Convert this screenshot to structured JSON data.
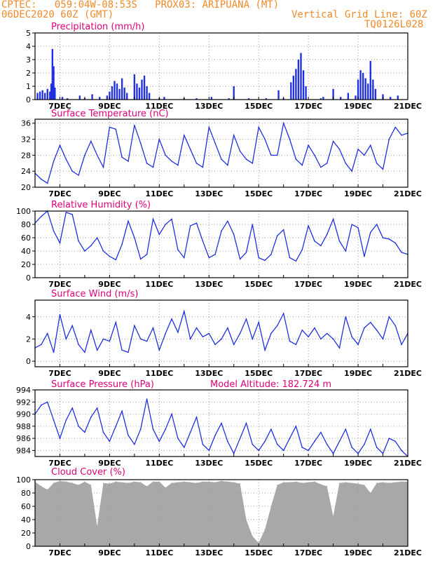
{
  "header": {
    "line1": "CPTEC:   059:04W-08:53S   PROX03: ARIPUANA (MT)",
    "line2_left": "06DEC2020 60Z (GMT)",
    "line2_right": "Vertical Grid Line: 60Z",
    "line3_right": "TQ0126L028"
  },
  "colors": {
    "series": "#2030e0",
    "title": "#e0007a",
    "header": "#f08a28",
    "cloud": "#a8a8a8",
    "grid": "#9a9a9a"
  },
  "x_axis": {
    "start_day": 6,
    "end_day": 21,
    "labels": [
      "7DEC",
      "9DEC",
      "11DEC",
      "13DEC",
      "15DEC",
      "17DEC",
      "19DEC",
      "21DEC"
    ],
    "label_days": [
      7,
      9,
      11,
      13,
      15,
      17,
      19,
      21
    ]
  },
  "chart_data": [
    {
      "type": "bar",
      "title": "Precipitation (mm/h)",
      "ylim": [
        0,
        5
      ],
      "yticks": [
        0,
        1,
        2,
        3,
        4,
        5
      ],
      "x": [
        6.1,
        6.2,
        6.3,
        6.4,
        6.5,
        6.6,
        6.65,
        6.7,
        6.75,
        6.8,
        7.1,
        7.3,
        7.8,
        8.0,
        8.3,
        8.6,
        8.9,
        9.0,
        9.1,
        9.2,
        9.3,
        9.4,
        9.5,
        9.6,
        9.7,
        10.0,
        10.1,
        10.2,
        10.3,
        10.4,
        10.5,
        10.6,
        11.0,
        11.2,
        12.0,
        12.5,
        13.1,
        13.8,
        14.0,
        14.6,
        15.3,
        15.8,
        16.0,
        16.3,
        16.4,
        16.5,
        16.6,
        16.7,
        16.8,
        16.9,
        17.5,
        17.6,
        18.0,
        18.3,
        18.6,
        18.9,
        19.0,
        19.1,
        19.2,
        19.3,
        19.4,
        19.5,
        19.6,
        19.7,
        20.0,
        20.3,
        20.6
      ],
      "values": [
        0.5,
        0.6,
        0.7,
        0.5,
        0.8,
        0.6,
        1.2,
        3.8,
        2.5,
        0.9,
        0.2,
        0.1,
        0.3,
        0.1,
        0.4,
        0.2,
        0.3,
        0.6,
        1.0,
        1.4,
        1.2,
        0.8,
        1.6,
        0.9,
        0.5,
        1.9,
        1.2,
        0.9,
        1.5,
        1.8,
        1.0,
        0.5,
        0.1,
        0.2,
        0.1,
        0.1,
        0.2,
        0.1,
        1.0,
        0.1,
        0.1,
        0.7,
        0.1,
        1.3,
        1.8,
        2.3,
        3.0,
        3.5,
        2.2,
        1.0,
        0.1,
        0.2,
        0.8,
        0.2,
        0.5,
        0.3,
        1.5,
        2.2,
        2.0,
        1.6,
        1.2,
        2.9,
        1.5,
        0.8,
        0.4,
        0.2,
        0.3
      ]
    },
    {
      "type": "line",
      "title": "Surface Temperature (nC)",
      "ylim": [
        20,
        37
      ],
      "yticks": [
        20,
        24,
        28,
        32,
        36
      ],
      "x": [
        6.0,
        6.25,
        6.5,
        6.75,
        7.0,
        7.25,
        7.5,
        7.75,
        8.0,
        8.25,
        8.5,
        8.75,
        9.0,
        9.25,
        9.5,
        9.75,
        10.0,
        10.25,
        10.5,
        10.75,
        11.0,
        11.25,
        11.5,
        11.75,
        12.0,
        12.25,
        12.5,
        12.75,
        13.0,
        13.25,
        13.5,
        13.75,
        14.0,
        14.25,
        14.5,
        14.75,
        15.0,
        15.25,
        15.5,
        15.75,
        16.0,
        16.25,
        16.5,
        16.75,
        17.0,
        17.25,
        17.5,
        17.75,
        18.0,
        18.25,
        18.5,
        18.75,
        19.0,
        19.25,
        19.5,
        19.75,
        20.0,
        20.25,
        20.5,
        20.75,
        21.0
      ],
      "values": [
        23.5,
        22.0,
        21.0,
        26.5,
        30.5,
        27.0,
        24.0,
        23.0,
        28.0,
        31.5,
        28.0,
        25.0,
        35.0,
        34.5,
        27.5,
        26.5,
        35.5,
        31.0,
        26.0,
        25.0,
        32.0,
        28.0,
        26.5,
        25.5,
        33.0,
        29.5,
        26.0,
        25.0,
        35.0,
        31.0,
        27.0,
        25.5,
        33.0,
        29.0,
        27.0,
        26.0,
        35.0,
        32.0,
        28.0,
        28.0,
        36.0,
        32.0,
        27.0,
        25.5,
        30.5,
        28.0,
        25.0,
        26.0,
        31.5,
        29.5,
        26.0,
        24.0,
        29.5,
        28.0,
        30.5,
        26.0,
        24.5,
        32.0,
        35.0,
        33.0,
        33.5
      ]
    },
    {
      "type": "line",
      "title": "Relative Humidity (%)",
      "ylim": [
        0,
        100
      ],
      "yticks": [
        0,
        20,
        40,
        60,
        80,
        100
      ],
      "x": [
        6.0,
        6.25,
        6.5,
        6.75,
        7.0,
        7.25,
        7.5,
        7.75,
        8.0,
        8.25,
        8.5,
        8.75,
        9.0,
        9.25,
        9.5,
        9.75,
        10.0,
        10.25,
        10.5,
        10.75,
        11.0,
        11.25,
        11.5,
        11.75,
        12.0,
        12.25,
        12.5,
        12.75,
        13.0,
        13.25,
        13.5,
        13.75,
        14.0,
        14.25,
        14.5,
        14.75,
        15.0,
        15.25,
        15.5,
        15.75,
        16.0,
        16.25,
        16.5,
        16.75,
        17.0,
        17.25,
        17.5,
        17.75,
        18.0,
        18.25,
        18.5,
        18.75,
        19.0,
        19.25,
        19.5,
        19.75,
        20.0,
        20.25,
        20.5,
        20.75,
        21.0
      ],
      "values": [
        82,
        92,
        100,
        70,
        52,
        98,
        95,
        55,
        40,
        48,
        60,
        40,
        32,
        27,
        50,
        85,
        60,
        28,
        35,
        88,
        65,
        80,
        88,
        42,
        30,
        78,
        82,
        55,
        30,
        35,
        70,
        85,
        65,
        28,
        38,
        80,
        30,
        26,
        35,
        63,
        72,
        30,
        25,
        42,
        78,
        55,
        48,
        65,
        88,
        55,
        40,
        80,
        75,
        32,
        68,
        80,
        60,
        58,
        52,
        38,
        35
      ]
    },
    {
      "type": "line",
      "title": "Surface Wind (m/s)",
      "ylim": [
        -0.5,
        5.5
      ],
      "yticks": [
        0,
        2,
        4
      ],
      "x": [
        6.0,
        6.25,
        6.5,
        6.75,
        7.0,
        7.25,
        7.5,
        7.75,
        8.0,
        8.25,
        8.5,
        8.75,
        9.0,
        9.25,
        9.5,
        9.75,
        10.0,
        10.25,
        10.5,
        10.75,
        11.0,
        11.25,
        11.5,
        11.75,
        12.0,
        12.25,
        12.5,
        12.75,
        13.0,
        13.25,
        13.5,
        13.75,
        14.0,
        14.25,
        14.5,
        14.75,
        15.0,
        15.25,
        15.5,
        15.75,
        16.0,
        16.25,
        16.5,
        16.75,
        17.0,
        17.25,
        17.5,
        17.75,
        18.0,
        18.25,
        18.5,
        18.75,
        19.0,
        19.25,
        19.5,
        19.75,
        20.0,
        20.25,
        20.5,
        20.75,
        21.0
      ],
      "values": [
        1.2,
        1.5,
        2.5,
        0.8,
        4.2,
        2.0,
        3.2,
        1.5,
        0.8,
        2.8,
        1.0,
        2.0,
        1.8,
        3.5,
        1.0,
        0.8,
        3.2,
        2.0,
        1.8,
        3.0,
        1.0,
        2.5,
        3.8,
        2.6,
        4.5,
        2.0,
        3.0,
        2.2,
        2.5,
        1.5,
        2.0,
        3.0,
        1.5,
        2.5,
        3.8,
        2.0,
        3.5,
        1.0,
        2.5,
        3.2,
        4.3,
        1.8,
        1.5,
        2.8,
        2.2,
        3.0,
        2.0,
        2.5,
        2.0,
        1.2,
        4.0,
        2.2,
        1.5,
        3.0,
        3.5,
        2.8,
        2.0,
        4.0,
        3.2,
        1.5,
        2.5
      ]
    },
    {
      "type": "line",
      "title": "Surface Pressure (hPa)",
      "subtitle": "Model Altitude: 182.724 m",
      "ylim": [
        983,
        994
      ],
      "yticks": [
        984,
        986,
        988,
        990,
        992,
        994
      ],
      "x": [
        6.0,
        6.25,
        6.5,
        6.75,
        7.0,
        7.25,
        7.5,
        7.75,
        8.0,
        8.25,
        8.5,
        8.75,
        9.0,
        9.25,
        9.5,
        9.75,
        10.0,
        10.25,
        10.5,
        10.75,
        11.0,
        11.25,
        11.5,
        11.75,
        12.0,
        12.25,
        12.5,
        12.75,
        13.0,
        13.25,
        13.5,
        13.75,
        14.0,
        14.25,
        14.5,
        14.75,
        15.0,
        15.25,
        15.5,
        15.75,
        16.0,
        16.25,
        16.5,
        16.75,
        17.0,
        17.25,
        17.5,
        17.75,
        18.0,
        18.25,
        18.5,
        18.75,
        19.0,
        19.25,
        19.5,
        19.75,
        20.0,
        20.25,
        20.5,
        20.75,
        21.0
      ],
      "values": [
        990,
        991.5,
        992,
        989,
        986,
        989,
        991,
        988,
        987,
        989.5,
        991,
        987,
        985.5,
        988,
        990.5,
        986.5,
        985,
        987.5,
        992.5,
        987.5,
        985.5,
        987.5,
        990,
        986,
        984.5,
        987,
        989.5,
        985,
        984,
        986.5,
        988.5,
        985.5,
        983.5,
        986,
        988.5,
        985,
        984,
        985.5,
        987.5,
        985,
        984,
        986,
        988,
        984.5,
        984,
        985.5,
        987,
        985,
        983.5,
        985.5,
        987.5,
        984.5,
        983.5,
        985,
        987.5,
        984.5,
        983.5,
        986,
        985.5,
        984,
        983
      ]
    },
    {
      "type": "bar",
      "title": "Cloud Cover (%)",
      "ylim": [
        0,
        100
      ],
      "yticks": [
        0,
        20,
        40,
        60,
        80,
        100
      ],
      "x": [
        6.0,
        6.25,
        6.5,
        6.75,
        7.0,
        7.25,
        7.5,
        7.75,
        8.0,
        8.25,
        8.5,
        8.75,
        9.0,
        9.25,
        9.5,
        9.75,
        10.0,
        10.25,
        10.5,
        10.75,
        11.0,
        11.25,
        11.5,
        11.75,
        12.0,
        12.25,
        12.5,
        12.75,
        13.0,
        13.25,
        13.5,
        13.75,
        14.0,
        14.25,
        14.5,
        14.75,
        15.0,
        15.25,
        15.5,
        15.75,
        16.0,
        16.25,
        16.5,
        16.75,
        17.0,
        17.25,
        17.5,
        17.75,
        18.0,
        18.25,
        18.5,
        18.75,
        19.0,
        19.25,
        19.5,
        19.75,
        20.0,
        20.25,
        20.5,
        20.75,
        21.0
      ],
      "values": [
        97,
        90,
        85,
        95,
        98,
        97,
        95,
        92,
        97,
        92,
        30,
        95,
        94,
        97,
        96,
        95,
        97,
        96,
        90,
        97,
        97,
        88,
        95,
        96,
        97,
        96,
        95,
        97,
        97,
        96,
        98,
        97,
        96,
        94,
        40,
        15,
        5,
        25,
        60,
        92,
        96,
        96,
        97,
        95,
        96,
        97,
        93,
        90,
        45,
        95,
        96,
        95,
        94,
        92,
        80,
        95,
        96,
        95,
        96,
        97,
        97
      ]
    }
  ]
}
